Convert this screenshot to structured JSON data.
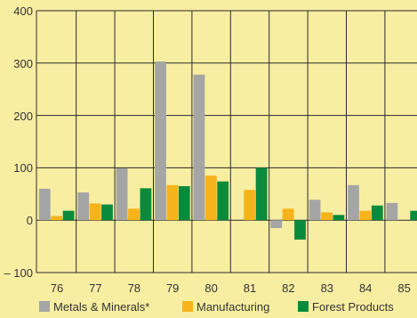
{
  "chart_data": {
    "type": "bar",
    "title": "",
    "xlabel": "",
    "ylabel": "",
    "ylim": [
      -100,
      400
    ],
    "yticks": [
      "400",
      "300",
      "200",
      "100",
      "0",
      "– 100"
    ],
    "grid": true,
    "legend_placement": "bottom",
    "categories": [
      "76",
      "77",
      "78",
      "79",
      "80",
      "81",
      "82",
      "83",
      "84",
      "85"
    ],
    "series": [
      {
        "name": "Metals & Minerals*",
        "color": "#a5a5a5",
        "values": [
          60,
          53,
          99,
          303,
          278,
          0,
          -15,
          39,
          67,
          33
        ]
      },
      {
        "name": "Manufacturing",
        "color": "#f6b31b",
        "values": [
          8,
          32,
          22,
          67,
          85,
          58,
          22,
          15,
          18,
          0
        ]
      },
      {
        "name": "Forest Products",
        "color": "#0a8a3c",
        "values": [
          18,
          30,
          61,
          65,
          74,
          100,
          -37,
          10,
          28,
          18
        ]
      }
    ]
  }
}
